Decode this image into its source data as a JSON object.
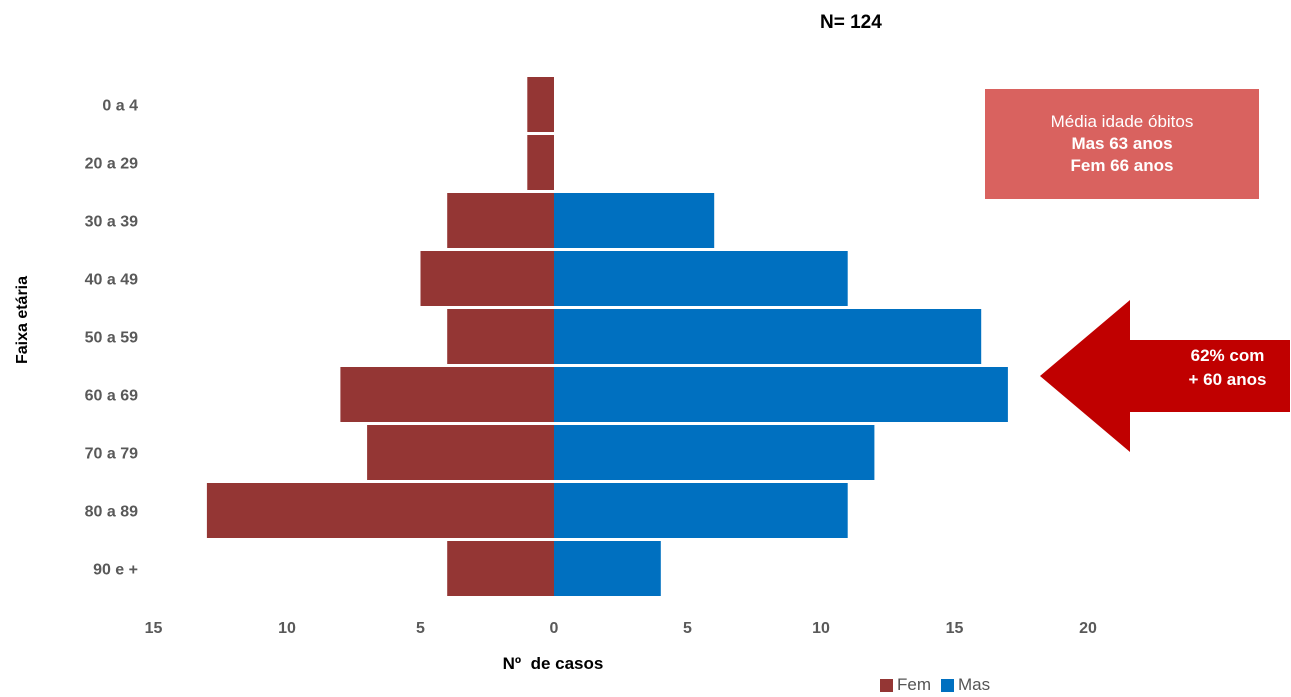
{
  "header": {
    "n_label": "N= 124"
  },
  "info_box": {
    "line1": "Média idade óbitos",
    "line2": "Mas 63 anos",
    "line3": "Fem 66 anos",
    "color": "#d9625f"
  },
  "arrow_callout": {
    "line1": "62% com",
    "line2": "+ 60 anos",
    "color": "#c00000"
  },
  "chart_data": {
    "type": "bar",
    "orientation": "horizontal",
    "subtype": "population pyramid",
    "categories": [
      "0 a 4",
      "20 a 29",
      "30 a 39",
      "40 a 49",
      "50 a 59",
      "60 a 69",
      "70 a 79",
      "80 a 89",
      "90 e +"
    ],
    "series": [
      {
        "name": "Fem",
        "values": [
          1,
          1,
          4,
          5,
          4,
          8,
          7,
          13,
          4
        ],
        "color": "#943634",
        "side": "left"
      },
      {
        "name": "Mas",
        "values": [
          0,
          0,
          6,
          11,
          16,
          17,
          12,
          11,
          4
        ],
        "color": "#0070c0",
        "side": "right"
      }
    ],
    "xlabel": "Nº  de casos",
    "ylabel": "Faixa etária",
    "xlim": [
      -15,
      20
    ],
    "xticks": [
      -15,
      -10,
      -5,
      0,
      5,
      10,
      15,
      20
    ],
    "xtick_labels": [
      "15",
      "10",
      "5",
      "0",
      "5",
      "10",
      "15",
      "20"
    ],
    "grid": false,
    "legend_position": "bottom-right"
  }
}
